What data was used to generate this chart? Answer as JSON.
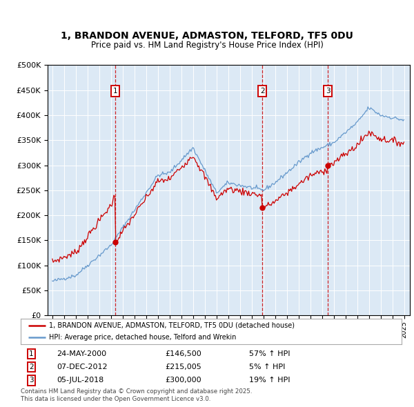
{
  "title": "1, BRANDON AVENUE, ADMASTON, TELFORD, TF5 0DU",
  "subtitle": "Price paid vs. HM Land Registry's House Price Index (HPI)",
  "ylim": [
    0,
    500000
  ],
  "yticks": [
    0,
    50000,
    100000,
    150000,
    200000,
    250000,
    300000,
    350000,
    400000,
    450000,
    500000
  ],
  "background_color": "#dce9f5",
  "legend_label_red": "1, BRANDON AVENUE, ADMASTON, TELFORD, TF5 0DU (detached house)",
  "legend_label_blue": "HPI: Average price, detached house, Telford and Wrekin",
  "sale_dates_label": [
    "24-MAY-2000",
    "07-DEC-2012",
    "05-JUL-2018"
  ],
  "sale_prices": [
    146500,
    215005,
    300000
  ],
  "sale_hpi_pct": [
    "57% ↑ HPI",
    "5% ↑ HPI",
    "19% ↑ HPI"
  ],
  "sale_years": [
    2000.38,
    2012.92,
    2018.5
  ],
  "footer": "Contains HM Land Registry data © Crown copyright and database right 2025.\nThis data is licensed under the Open Government Licence v3.0.",
  "red_color": "#cc0000",
  "blue_color": "#6699cc",
  "marker_box_color": "#cc0000"
}
